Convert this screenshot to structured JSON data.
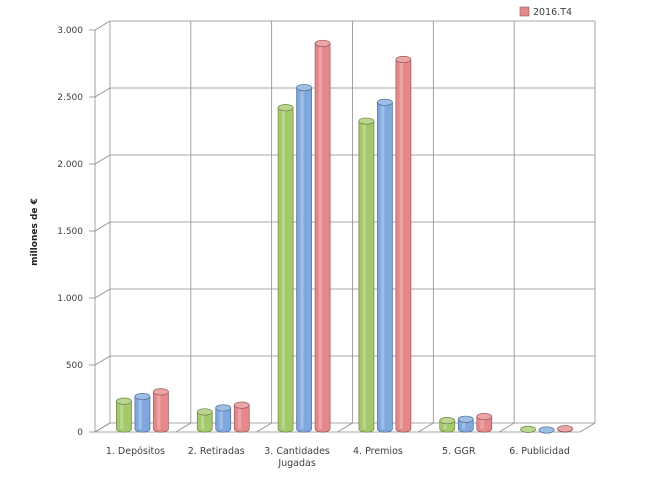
{
  "chart_data": {
    "type": "bar",
    "ylabel": "millones de €",
    "ylim": [
      0,
      3000
    ],
    "yticks": [
      0,
      500,
      1000,
      1500,
      2000,
      2500,
      3000
    ],
    "ytick_labels": [
      "0",
      "500",
      "1.000",
      "1.500",
      "2.000",
      "2.500",
      "3.000"
    ],
    "grid": true,
    "legend_position": "top-right",
    "categories": [
      "1. Depósitos",
      "2. Retiradas",
      "3. Cantidades Jugadas",
      "4. Premios",
      "5. GGR",
      "6. Publicidad"
    ],
    "category_lines": [
      [
        "1. Depósitos"
      ],
      [
        "2. Retiradas"
      ],
      [
        "3. Cantidades",
        "Jugadas"
      ],
      [
        "4. Premios"
      ],
      [
        "5. GGR"
      ],
      [
        "6. Publicidad"
      ]
    ],
    "series": [
      {
        "name": "",
        "color": "#a4c96a",
        "values": [
          230,
          150,
          2420,
          2320,
          85,
          20
        ]
      },
      {
        "name": "",
        "color": "#7fa8de",
        "values": [
          265,
          180,
          2570,
          2460,
          95,
          15
        ]
      },
      {
        "name": "2016.T4",
        "color": "#e5888a",
        "values": [
          300,
          200,
          2900,
          2780,
          115,
          25
        ]
      }
    ]
  }
}
